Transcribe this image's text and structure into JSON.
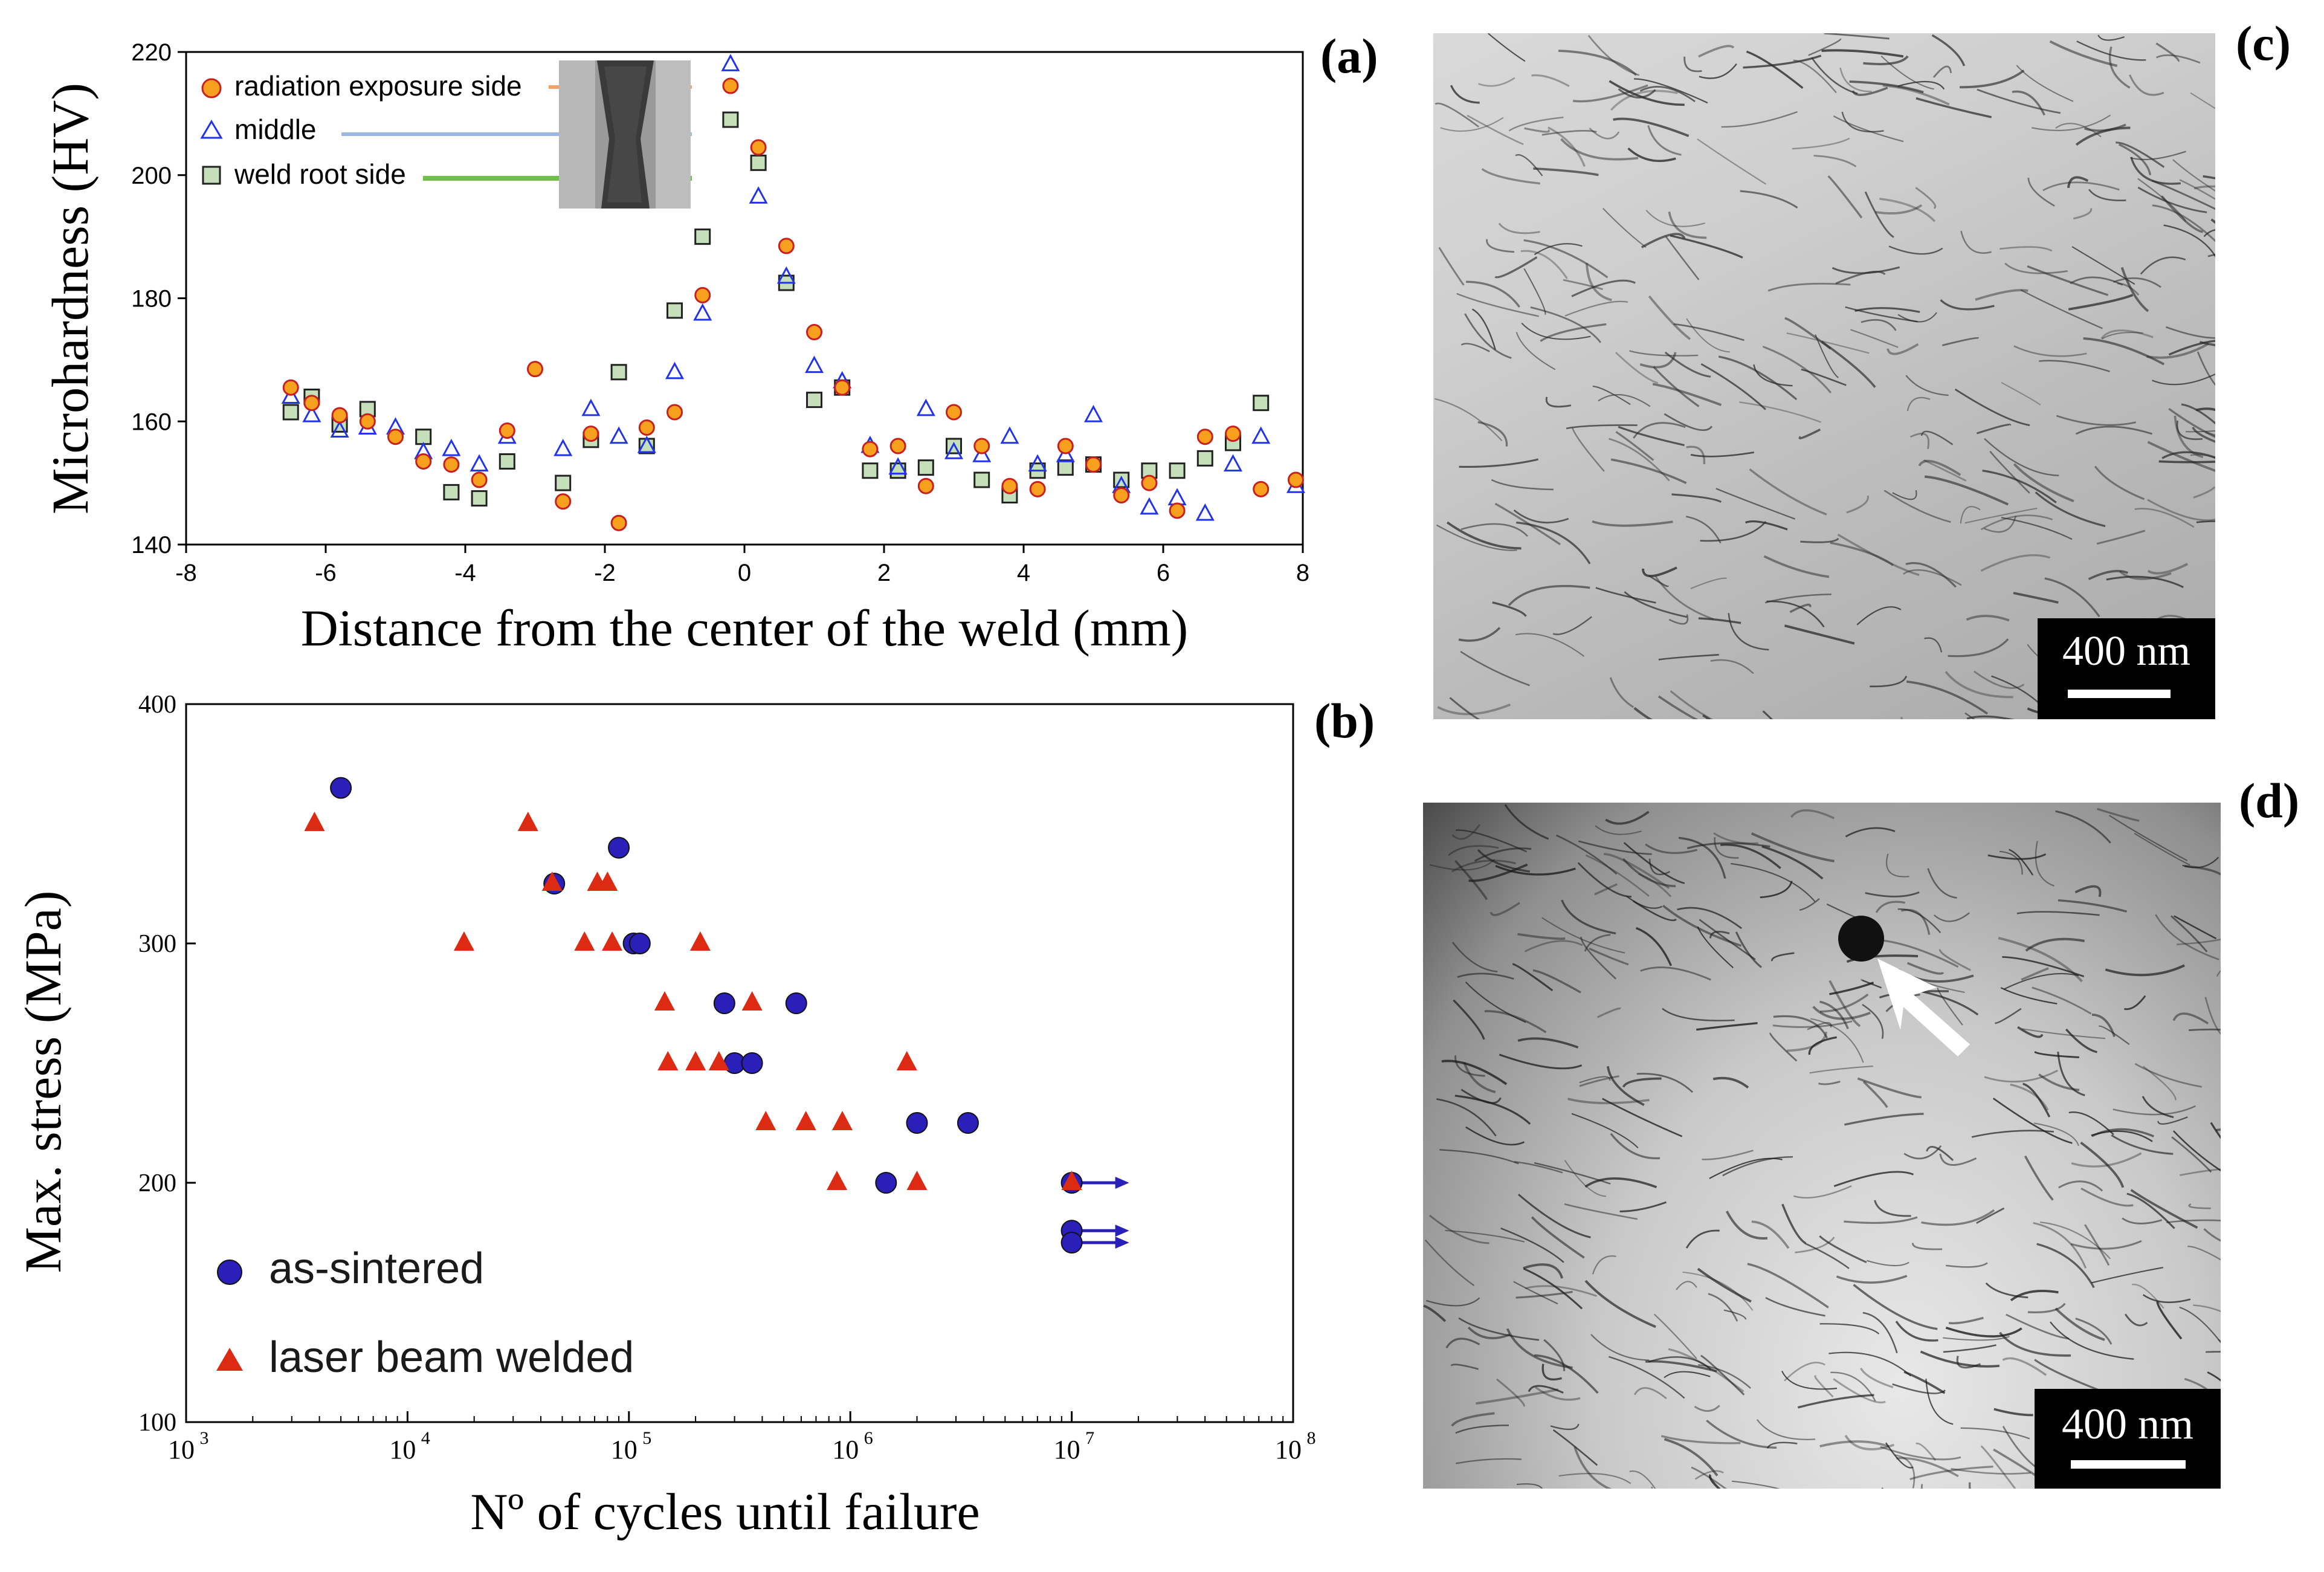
{
  "panels": {
    "a": "(a)",
    "b": "(b)",
    "c": "(c)",
    "d": "(d)"
  },
  "colors": {
    "radiation_fill": "#f7a01d",
    "radiation_edge": "#c8201f",
    "middle": "#2233ee",
    "root_fill": "#c4dfb9",
    "root_edge": "#222222",
    "as_sintered": "#2a1fb8",
    "laser": "#dd2a12",
    "orange_line": "#f3a36a",
    "blue_line": "#9cb6e6",
    "green_line": "#72bd4c"
  },
  "scalebars": {
    "c": "400 nm",
    "d": "400 nm"
  },
  "chart_data": [
    {
      "type": "scatter",
      "panel": "(a)",
      "xlabel": "Distance from the center of the weld (mm)",
      "ylabel": "Microhardness (HV)",
      "xlim": [
        -8,
        8
      ],
      "ylim": [
        140,
        220
      ],
      "xticks": [
        "-8",
        "-6",
        "-4",
        "-2",
        "0",
        "2",
        "4",
        "6",
        "8"
      ],
      "yticks": [
        "140",
        "160",
        "180",
        "200",
        "220"
      ],
      "legend_position": "top-left",
      "series": [
        {
          "name": "radiation exposure side",
          "marker": "circle",
          "points": [
            [
              -6.5,
              165.5
            ],
            [
              -6.2,
              163
            ],
            [
              -5.8,
              161
            ],
            [
              -5.4,
              160
            ],
            [
              -5.0,
              157.5
            ],
            [
              -4.6,
              153.5
            ],
            [
              -4.2,
              153
            ],
            [
              -3.8,
              150.5
            ],
            [
              -3.4,
              158.5
            ],
            [
              -3.0,
              168.5
            ],
            [
              -2.6,
              147
            ],
            [
              -2.2,
              158
            ],
            [
              -1.8,
              143.5
            ],
            [
              -1.4,
              159
            ],
            [
              -1.0,
              161.5
            ],
            [
              -0.6,
              180.5
            ],
            [
              -0.2,
              214.5
            ],
            [
              0.2,
              204.5
            ],
            [
              0.6,
              188.5
            ],
            [
              1.0,
              174.5
            ],
            [
              1.4,
              165.5
            ],
            [
              1.8,
              155.5
            ],
            [
              2.2,
              156
            ],
            [
              2.6,
              149.5
            ],
            [
              3.0,
              161.5
            ],
            [
              3.4,
              156
            ],
            [
              3.8,
              149.5
            ],
            [
              4.2,
              149
            ],
            [
              4.6,
              156
            ],
            [
              5.0,
              153
            ],
            [
              5.4,
              148
            ],
            [
              5.8,
              150
            ],
            [
              6.2,
              145.5
            ],
            [
              6.6,
              157.5
            ],
            [
              7.0,
              158
            ],
            [
              7.4,
              149
            ],
            [
              7.9,
              150.5
            ]
          ]
        },
        {
          "name": "middle",
          "marker": "triangle",
          "points": [
            [
              -6.5,
              164
            ],
            [
              -6.2,
              161
            ],
            [
              -5.8,
              158.5
            ],
            [
              -5.4,
              159
            ],
            [
              -5.0,
              159
            ],
            [
              -4.6,
              155
            ],
            [
              -4.2,
              155.5
            ],
            [
              -3.8,
              153
            ],
            [
              -3.4,
              157.5
            ],
            [
              -2.6,
              155.5
            ],
            [
              -2.2,
              162
            ],
            [
              -1.8,
              157.5
            ],
            [
              -1.4,
              156
            ],
            [
              -1.0,
              168
            ],
            [
              -0.6,
              177.5
            ],
            [
              -0.2,
              218
            ],
            [
              0.2,
              196.5
            ],
            [
              0.6,
              183.5
            ],
            [
              1.0,
              169
            ],
            [
              1.4,
              166.5
            ],
            [
              1.8,
              156
            ],
            [
              2.2,
              152.5
            ],
            [
              2.6,
              162
            ],
            [
              3.0,
              155
            ],
            [
              3.4,
              154.5
            ],
            [
              3.8,
              157.5
            ],
            [
              4.2,
              153
            ],
            [
              4.6,
              154.5
            ],
            [
              5.0,
              161
            ],
            [
              5.4,
              149.5
            ],
            [
              5.8,
              146
            ],
            [
              6.2,
              147.5
            ],
            [
              6.6,
              145
            ],
            [
              7.0,
              153
            ],
            [
              7.4,
              157.5
            ],
            [
              7.9,
              149.5
            ]
          ]
        },
        {
          "name": "weld root side",
          "marker": "square",
          "points": [
            [
              -6.5,
              161.5
            ],
            [
              -6.2,
              164
            ],
            [
              -5.8,
              159.5
            ],
            [
              -5.4,
              162
            ],
            [
              -4.6,
              157.5
            ],
            [
              -4.2,
              148.5
            ],
            [
              -3.8,
              147.5
            ],
            [
              -3.4,
              153.5
            ],
            [
              -2.6,
              150
            ],
            [
              -2.2,
              157
            ],
            [
              -1.8,
              168
            ],
            [
              -1.4,
              156
            ],
            [
              -1.0,
              178
            ],
            [
              -0.6,
              190
            ],
            [
              -0.2,
              209
            ],
            [
              0.2,
              202
            ],
            [
              0.6,
              182.5
            ],
            [
              1.0,
              163.5
            ],
            [
              1.4,
              165.5
            ],
            [
              1.8,
              152
            ],
            [
              2.2,
              152
            ],
            [
              2.6,
              152.5
            ],
            [
              3.0,
              156
            ],
            [
              3.4,
              150.5
            ],
            [
              3.8,
              148
            ],
            [
              4.2,
              152
            ],
            [
              4.6,
              152.5
            ],
            [
              5.0,
              153
            ],
            [
              5.4,
              150.5
            ],
            [
              5.8,
              152
            ],
            [
              6.2,
              152
            ],
            [
              6.6,
              154
            ],
            [
              7.0,
              156.5
            ],
            [
              7.4,
              163
            ]
          ]
        }
      ]
    },
    {
      "type": "scatter",
      "panel": "(b)",
      "xlabel": "Nº of cycles until failure",
      "ylabel": "Max. stress (MPa)",
      "xscale": "log",
      "xlim": [
        1000,
        100000000
      ],
      "ylim": [
        100,
        400
      ],
      "xticks": [
        {
          "base": "10",
          "exp": "3"
        },
        {
          "base": "10",
          "exp": "4"
        },
        {
          "base": "10",
          "exp": "5"
        },
        {
          "base": "10",
          "exp": "6"
        },
        {
          "base": "10",
          "exp": "7"
        },
        {
          "base": "10",
          "exp": "8"
        }
      ],
      "yticks": [
        "100",
        "200",
        "300",
        "400"
      ],
      "legend_position": "bottom-left",
      "runouts": [
        [
          10000000,
          200
        ],
        [
          10000000,
          180
        ],
        [
          10000000,
          175
        ]
      ],
      "series": [
        {
          "name": "as-sintered",
          "marker": "circle",
          "points": [
            [
              5000,
              365
            ],
            [
              46000,
              325
            ],
            [
              90000,
              340
            ],
            [
              105000,
              300
            ],
            [
              112000,
              300
            ],
            [
              270000,
              275
            ],
            [
              300000,
              250
            ],
            [
              360000,
              250
            ],
            [
              570000,
              275
            ],
            [
              1450000,
              200
            ],
            [
              2000000,
              225
            ],
            [
              3400000,
              225
            ],
            [
              10000000,
              200
            ],
            [
              10000000,
              180
            ],
            [
              10000000,
              175
            ]
          ]
        },
        {
          "name": "laser beam welded",
          "marker": "triangle",
          "points": [
            [
              3800,
              350
            ],
            [
              18000,
              300
            ],
            [
              35000,
              350
            ],
            [
              45000,
              325
            ],
            [
              72000,
              325
            ],
            [
              80000,
              325
            ],
            [
              63000,
              300
            ],
            [
              84000,
              300
            ],
            [
              210000,
              300
            ],
            [
              145000,
              275
            ],
            [
              360000,
              275
            ],
            [
              150000,
              250
            ],
            [
              200000,
              250
            ],
            [
              255000,
              250
            ],
            [
              415000,
              225
            ],
            [
              630000,
              225
            ],
            [
              920000,
              225
            ],
            [
              1800000,
              250
            ],
            [
              870000,
              200
            ],
            [
              2000000,
              200
            ],
            [
              10000000,
              200
            ]
          ]
        }
      ]
    }
  ]
}
